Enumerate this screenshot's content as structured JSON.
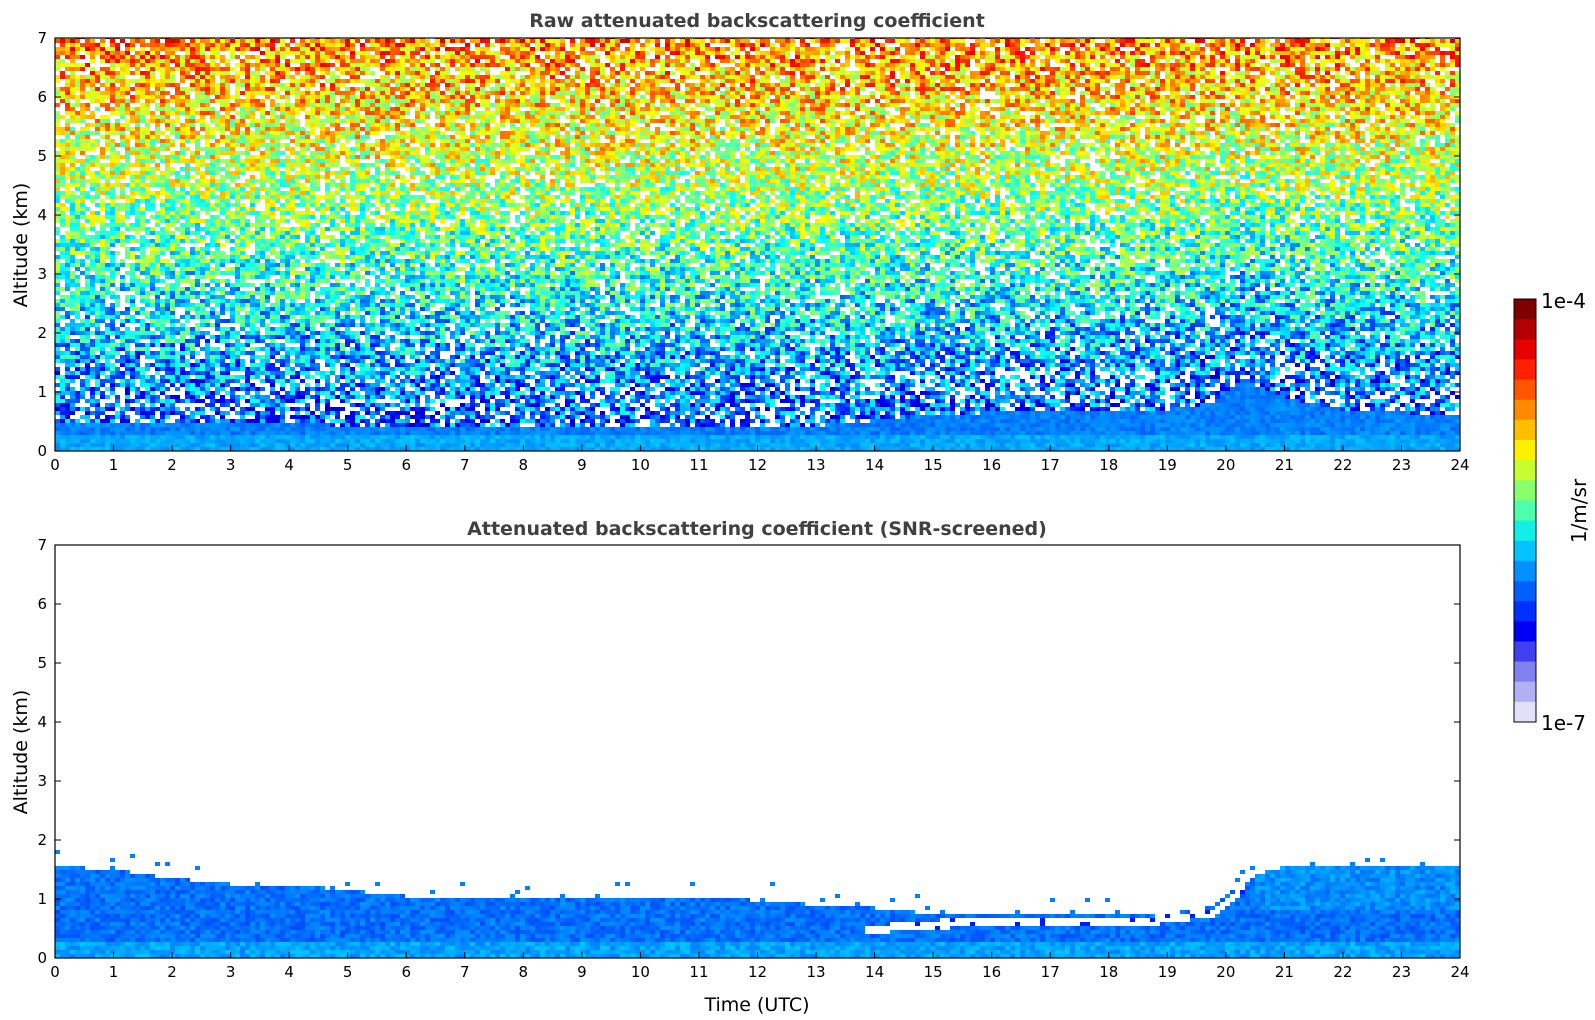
{
  "chart_data": [
    {
      "type": "heatmap",
      "title": "Raw attenuated backscattering coefficient",
      "xlabel": "",
      "ylabel": "Altitude (km)",
      "xlim": [
        0,
        24
      ],
      "ylim": [
        0,
        7
      ],
      "xticks": [
        "0",
        "1",
        "2",
        "3",
        "4",
        "5",
        "6",
        "7",
        "8",
        "9",
        "10",
        "11",
        "12",
        "13",
        "14",
        "15",
        "16",
        "17",
        "18",
        "19",
        "20",
        "21",
        "22",
        "23",
        "24"
      ],
      "yticks": [
        "0",
        "1",
        "2",
        "3",
        "4",
        "5",
        "6",
        "7"
      ],
      "colormap": "jet",
      "color_scale": "log",
      "screened": false,
      "boundary_layer_top_km": [
        [
          0,
          0.45
        ],
        [
          2,
          0.45
        ],
        [
          4,
          0.45
        ],
        [
          6,
          0.42
        ],
        [
          8,
          0.4
        ],
        [
          10,
          0.38
        ],
        [
          12,
          0.4
        ],
        [
          13,
          0.42
        ],
        [
          13.5,
          0.45
        ],
        [
          14,
          0.52
        ],
        [
          15,
          0.62
        ],
        [
          16,
          0.65
        ],
        [
          17,
          0.66
        ],
        [
          18,
          0.66
        ],
        [
          19,
          0.7
        ],
        [
          19.8,
          0.82
        ],
        [
          20.3,
          1.22
        ],
        [
          21,
          0.9
        ],
        [
          22,
          0.7
        ],
        [
          24,
          0.6
        ]
      ]
    },
    {
      "type": "heatmap",
      "title": "Attenuated backscattering coefficient (SNR-screened)",
      "xlabel": "Time (UTC)",
      "ylabel": "Altitude (km)",
      "xlim": [
        0,
        24
      ],
      "ylim": [
        0,
        7
      ],
      "xticks": [
        "0",
        "1",
        "2",
        "3",
        "4",
        "5",
        "6",
        "7",
        "8",
        "9",
        "10",
        "11",
        "12",
        "13",
        "14",
        "15",
        "16",
        "17",
        "18",
        "19",
        "20",
        "21",
        "22",
        "23",
        "24"
      ],
      "yticks": [
        "0",
        "1",
        "2",
        "3",
        "4",
        "5",
        "6",
        "7"
      ],
      "colormap": "jet",
      "color_scale": "log",
      "screened": true,
      "signal_top_km": [
        [
          0,
          1.55
        ],
        [
          1,
          1.5
        ],
        [
          2,
          1.35
        ],
        [
          3,
          1.25
        ],
        [
          4,
          1.25
        ],
        [
          5,
          1.15
        ],
        [
          6,
          1.05
        ],
        [
          7,
          1.02
        ],
        [
          8,
          1.02
        ],
        [
          9,
          1.0
        ],
        [
          10,
          1.0
        ],
        [
          11,
          1.0
        ],
        [
          12,
          0.98
        ],
        [
          13,
          0.9
        ],
        [
          14,
          0.85
        ],
        [
          15,
          0.75
        ],
        [
          16,
          0.72
        ],
        [
          17,
          0.72
        ],
        [
          18,
          0.72
        ],
        [
          19,
          0.75
        ],
        [
          19.7,
          0.85
        ],
        [
          20.3,
          1.25
        ],
        [
          20.6,
          1.45
        ],
        [
          21,
          1.55
        ],
        [
          22,
          1.55
        ],
        [
          23,
          1.55
        ],
        [
          24,
          1.55
        ]
      ],
      "white_gap_km": [
        [
          13.8,
          0.52
        ],
        [
          15,
          0.62
        ],
        [
          16,
          0.65
        ],
        [
          17,
          0.66
        ],
        [
          18,
          0.66
        ],
        [
          19,
          0.7
        ],
        [
          19.8,
          0.82
        ],
        [
          20.3,
          1.22
        ]
      ]
    }
  ],
  "colorbar": {
    "max_label": "1e-4",
    "min_label": "1e-7",
    "label": "1/m/sr",
    "colors": [
      "#7f0000",
      "#b30000",
      "#e60000",
      "#ff2000",
      "#ff5500",
      "#ff8a00",
      "#ffbf00",
      "#fff000",
      "#c6ff30",
      "#8aff6d",
      "#4dffaa",
      "#10f0e6",
      "#00c4ff",
      "#0090ff",
      "#0060ff",
      "#0030ff",
      "#0000f4",
      "#4040f0",
      "#8080f0",
      "#b0b0f4",
      "#e0e0f8"
    ]
  }
}
